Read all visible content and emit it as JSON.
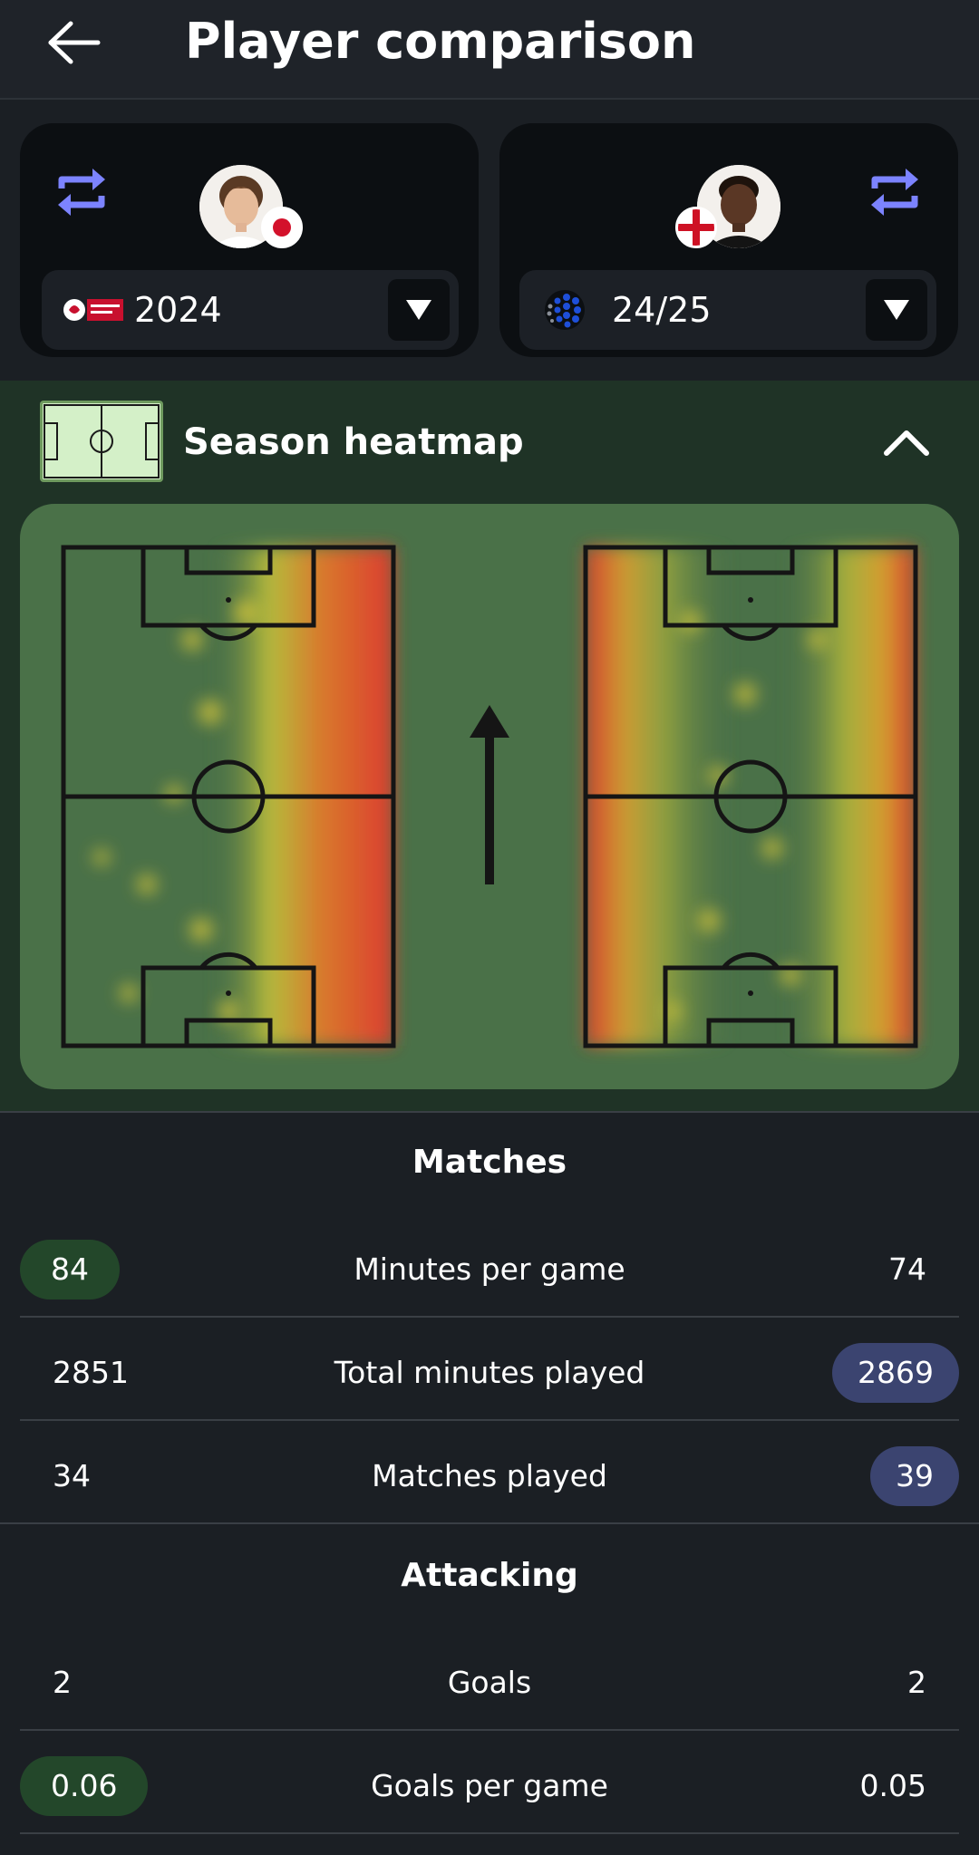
{
  "header": {
    "title": "Player comparison",
    "back_icon": "arrow-left-icon"
  },
  "players": [
    {
      "season": "2024",
      "league_logo": "j1-league-logo",
      "flag": "japan-flag",
      "swap_icon": "swap-arrows-icon"
    },
    {
      "season": "24/25",
      "league_logo": "league-ball-logo",
      "flag": "england-flag",
      "swap_icon": "swap-arrows-icon"
    }
  ],
  "heatmap": {
    "title": "Season heatmap",
    "icon": "pitch-icon",
    "toggle_icon": "chevron-up-icon",
    "direction_icon": "arrow-up-icon"
  },
  "sections": [
    {
      "title": "Matches",
      "rows": [
        {
          "label": "Minutes per game",
          "left": "84",
          "right": "74",
          "highlight": "left"
        },
        {
          "label": "Total minutes played",
          "left": "2851",
          "right": "2869",
          "highlight": "right"
        },
        {
          "label": "Matches played",
          "left": "34",
          "right": "39",
          "highlight": "right"
        }
      ]
    },
    {
      "title": "Attacking",
      "rows": [
        {
          "label": "Goals",
          "left": "2",
          "right": "2",
          "highlight": "none"
        },
        {
          "label": "Goals per game",
          "left": "0.06",
          "right": "0.05",
          "highlight": "left"
        }
      ]
    }
  ],
  "colors": {
    "left_highlight": "#23472a",
    "right_highlight": "#3b4470",
    "accent_swap": "#7c83ff",
    "pitch_bg": "#4a7148"
  }
}
